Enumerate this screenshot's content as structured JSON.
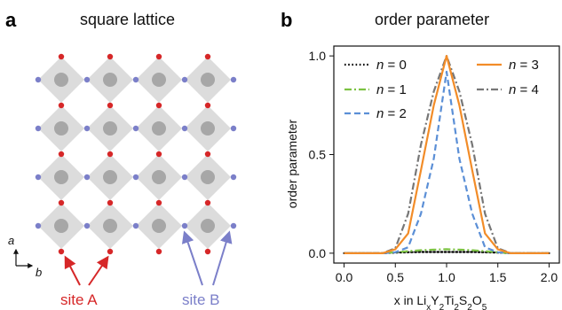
{
  "panel_a": {
    "letter": "a",
    "title": "square lattice",
    "rows": 4,
    "cols": 4,
    "octahedron_color": "#dcdcdc",
    "center_color": "#a7a7a7",
    "site_a": {
      "label": "site A",
      "color": "#d62728"
    },
    "site_b": {
      "label": "site B",
      "color": "#7b7fc9"
    },
    "direction_labels": {
      "up": "a",
      "right": "b"
    }
  },
  "panel_b": {
    "letter": "b",
    "title": "order parameter",
    "ylabel": "order parameter",
    "xlabel_parts": {
      "x": "x in Li",
      "sub1": "x",
      "y": "Y",
      "sub2": "2",
      "ti": "Ti",
      "sub3": "2",
      "s": "S",
      "sub4": "2",
      "o": "O",
      "sub5": "5"
    }
  },
  "chart_data": {
    "type": "line",
    "title": "order parameter",
    "xlabel": "x in LixY2Ti2S2O5",
    "ylabel": "order parameter",
    "xlim": [
      -0.1,
      2.1
    ],
    "ylim": [
      -0.05,
      1.05
    ],
    "xticks": [
      0.0,
      0.5,
      1.0,
      1.5,
      2.0
    ],
    "xtick_labels": [
      "0.0",
      "0.5",
      "1.0",
      "1.5",
      "2.0"
    ],
    "yticks": [
      0.0,
      0.5,
      1.0
    ],
    "ytick_labels": [
      "0.0",
      "0.5",
      "1.0"
    ],
    "grid": false,
    "legend_placement": "top",
    "series": [
      {
        "name": "n = 0",
        "color": "#000000",
        "dash": "dotted",
        "x": [
          0.0,
          0.125,
          0.25,
          0.375,
          0.5,
          0.625,
          0.75,
          0.875,
          1.0,
          1.125,
          1.25,
          1.375,
          1.5,
          1.625,
          1.75,
          1.875,
          2.0
        ],
        "y": [
          0,
          0,
          0,
          0,
          0.003,
          0.005,
          0.006,
          0.006,
          0.006,
          0.006,
          0.006,
          0.005,
          0.003,
          0,
          0,
          0,
          0
        ]
      },
      {
        "name": "n = 1",
        "color": "#7cc242",
        "dash": "dashdot",
        "x": [
          0.0,
          0.125,
          0.25,
          0.375,
          0.5,
          0.625,
          0.75,
          0.875,
          1.0,
          1.125,
          1.25,
          1.375,
          1.5,
          1.625,
          1.75,
          1.875,
          2.0
        ],
        "y": [
          0,
          0,
          0,
          0,
          0.005,
          0.01,
          0.015,
          0.018,
          0.02,
          0.018,
          0.015,
          0.01,
          0.005,
          0,
          0,
          0,
          0
        ]
      },
      {
        "name": "n = 2",
        "color": "#5b8fd6",
        "dash": "dashed",
        "x": [
          0.0,
          0.125,
          0.25,
          0.375,
          0.5,
          0.625,
          0.75,
          0.875,
          1.0,
          1.125,
          1.25,
          1.375,
          1.5,
          1.625,
          1.75,
          1.875,
          2.0
        ],
        "y": [
          0,
          0,
          0,
          0,
          0.005,
          0.03,
          0.2,
          0.48,
          0.92,
          0.48,
          0.2,
          0.03,
          0.005,
          0,
          0,
          0,
          0
        ]
      },
      {
        "name": "n = 3",
        "color": "#f28c28",
        "dash": "solid",
        "x": [
          0.0,
          0.125,
          0.25,
          0.375,
          0.5,
          0.625,
          0.75,
          0.875,
          1.0,
          1.125,
          1.25,
          1.375,
          1.5,
          1.625,
          1.75,
          1.875,
          2.0
        ],
        "y": [
          0,
          0,
          0,
          0,
          0.02,
          0.1,
          0.42,
          0.75,
          1.0,
          0.75,
          0.42,
          0.1,
          0.02,
          0,
          0,
          0,
          0
        ]
      },
      {
        "name": "n = 4",
        "color": "#777777",
        "dash": "dashdot",
        "x": [
          0.0,
          0.125,
          0.25,
          0.375,
          0.5,
          0.625,
          0.75,
          0.875,
          1.0,
          1.125,
          1.25,
          1.375,
          1.5,
          1.625,
          1.75,
          1.875,
          2.0
        ],
        "y": [
          0,
          0,
          0,
          0,
          0.025,
          0.2,
          0.55,
          0.82,
          1.0,
          0.82,
          0.55,
          0.2,
          0.025,
          0,
          0,
          0,
          0
        ]
      }
    ],
    "legend_entries": [
      {
        "n": "0",
        "series": 0
      },
      {
        "n": "1",
        "series": 1
      },
      {
        "n": "2",
        "series": 2
      },
      {
        "n": "3",
        "series": 3
      },
      {
        "n": "4",
        "series": 4
      }
    ]
  }
}
